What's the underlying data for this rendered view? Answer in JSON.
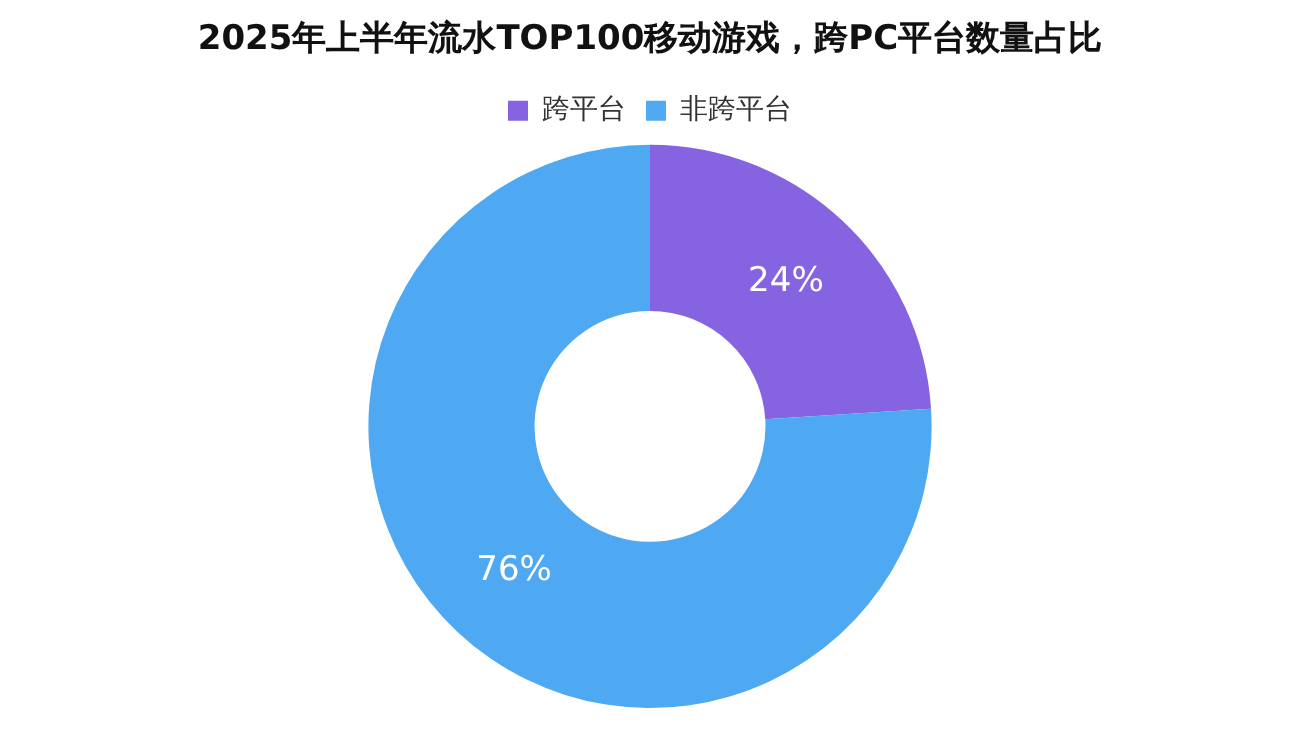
{
  "chart_data": {
    "type": "donut",
    "title": "2025年上半年流水TOP100移动游戏，跨PC平台数量占比",
    "categories": [
      "跨平台",
      "非跨平台"
    ],
    "values": [
      24,
      76
    ],
    "colors": [
      "#8663e0",
      "#4ea8f2"
    ],
    "value_labels": [
      "24%",
      "76%"
    ],
    "legend": "top"
  }
}
